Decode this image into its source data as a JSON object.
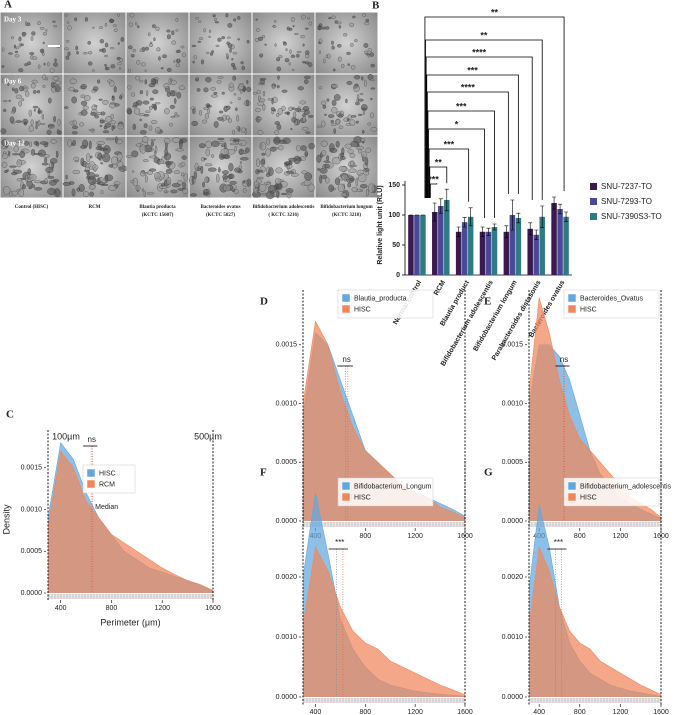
{
  "panel_a": {
    "label": "A",
    "rows": [
      "Day 3",
      "Day 6",
      "Day 12"
    ],
    "columns": [
      [
        "Control (HISC)"
      ],
      [
        "RCM"
      ],
      [
        "Blautia producta",
        "(KCTC 15607)"
      ],
      [
        "Bacteroides ovatus",
        "(KCTC 5827)"
      ],
      [
        "Bifidobacterium adolescentis",
        "( KCTC 3216)"
      ],
      [
        "Bifidobacterium longum",
        "(KCTC 3218)"
      ]
    ]
  },
  "chart_data": [
    {
      "type": "bar",
      "label": "B",
      "ylabel": "Relative light unit (RLU)",
      "categories": [
        "Normal control",
        "RCM",
        "Blautia product",
        "Bifidobacterium adolescentis",
        "Bifidobacterium longum",
        "Parabacteroides distasonis",
        "Bacteroides ovatus"
      ],
      "series": [
        {
          "name": "SNU-7237-TO",
          "color": "#3b1a52",
          "values": [
            100,
            105,
            72,
            72,
            72,
            77,
            120
          ],
          "errors": [
            0,
            15,
            8,
            8,
            10,
            10,
            10
          ]
        },
        {
          "name": "SNU-7293-TO",
          "color": "#4a4996",
          "values": [
            100,
            115,
            88,
            72,
            100,
            67,
            110
          ],
          "errors": [
            0,
            12,
            8,
            6,
            25,
            8,
            8
          ]
        },
        {
          "name": "SNU-7390S3-TO",
          "color": "#2e7b84",
          "values": [
            100,
            125,
            97,
            80,
            95,
            97,
            97
          ],
          "errors": [
            0,
            18,
            15,
            5,
            8,
            18,
            8
          ]
        }
      ],
      "ylim": [
        0,
        150
      ],
      "yticks": [
        0,
        50,
        100,
        150
      ],
      "annotations": [
        "**",
        "**",
        "****",
        "***",
        "****",
        "***",
        "*",
        "***",
        "**",
        "***"
      ]
    },
    {
      "type": "density",
      "label": "C",
      "xlabel": "Perimeter (μm)",
      "ylabel": "Density",
      "x": [
        300,
        400,
        500,
        600,
        700,
        800,
        900,
        1000,
        1100,
        1200,
        1300,
        1400,
        1500,
        1600
      ],
      "series": [
        {
          "name": "HISC",
          "color": "#62a8de",
          "median": 640,
          "values": [
            0.0009,
            0.0018,
            0.0016,
            0.0012,
            0.0009,
            0.0007,
            0.0005,
            0.0004,
            0.0003,
            0.00025,
            0.0002,
            0.00015,
            0.0001,
            3e-05
          ]
        },
        {
          "name": "RCM",
          "color": "#f0875c",
          "median": 650,
          "values": [
            0.0008,
            0.0017,
            0.0015,
            0.0011,
            0.0009,
            0.0007,
            0.0006,
            0.0005,
            0.0004,
            0.0003,
            0.00022,
            0.00015,
            0.0001,
            3e-05
          ]
        }
      ],
      "xlim": [
        300,
        1600
      ],
      "xticks": [
        400,
        800,
        1200,
        1600
      ],
      "ylim": [
        0,
        0.002
      ],
      "yticks": [
        {
          "value": 0,
          "label": "0.0000"
        },
        {
          "value": 0.0005,
          "label": "0.0005"
        },
        {
          "value": 0.001,
          "label": "0.0010"
        },
        {
          "value": 0.0015,
          "label": "0.0015"
        }
      ],
      "significance": "ns",
      "annotations": [
        "100µm",
        "500µm",
        "Median"
      ]
    },
    {
      "type": "density",
      "label": "D",
      "x": [
        300,
        400,
        500,
        600,
        700,
        800,
        900,
        1000,
        1100,
        1200,
        1300,
        1400,
        1500,
        1600
      ],
      "series": [
        {
          "name": "Blautia_producta",
          "color": "#62a8de",
          "median": 640,
          "values": [
            0.0009,
            0.0016,
            0.0015,
            0.0012,
            0.0009,
            0.0006,
            0.0005,
            0.0004,
            0.0003,
            0.00025,
            0.0002,
            0.00015,
            0.0001,
            4e-05
          ]
        },
        {
          "name": "HISC",
          "color": "#f0875c",
          "median": 660,
          "values": [
            0.001,
            0.0017,
            0.0015,
            0.0011,
            0.0008,
            0.0006,
            0.0005,
            0.0004,
            0.0003,
            0.00025,
            0.0002,
            0.00012,
            8e-05,
            3e-05
          ]
        }
      ],
      "xlim": [
        300,
        1600
      ],
      "xticks": [
        400,
        800,
        1200,
        1600
      ],
      "ylim": [
        0,
        0.002
      ],
      "yticks": [
        {
          "value": 0,
          "label": "0.0000"
        },
        {
          "value": 0.0005,
          "label": "0.0005"
        },
        {
          "value": 0.001,
          "label": "0.0010"
        },
        {
          "value": 0.0015,
          "label": "0.0015"
        }
      ],
      "significance": "ns"
    },
    {
      "type": "density",
      "label": "E",
      "x": [
        300,
        400,
        500,
        600,
        700,
        800,
        900,
        1000,
        1100,
        1200,
        1300,
        1400,
        1500,
        1600
      ],
      "series": [
        {
          "name": "Bacteroides_Ovatus",
          "color": "#62a8de",
          "median": 640,
          "values": [
            0.001,
            0.0015,
            0.0015,
            0.0014,
            0.0012,
            0.0009,
            0.0006,
            0.0004,
            0.0003,
            0.0002,
            0.00015,
            0.0001,
            6e-05,
            2e-05
          ]
        },
        {
          "name": "HISC",
          "color": "#f0875c",
          "median": 650,
          "values": [
            0.0011,
            0.0019,
            0.0016,
            0.0012,
            0.0009,
            0.0007,
            0.0006,
            0.0005,
            0.0004,
            0.0003,
            0.0002,
            0.00015,
            0.0001,
            3e-05
          ]
        }
      ],
      "xlim": [
        300,
        1600
      ],
      "xticks": [
        400,
        800,
        1200,
        1600
      ],
      "ylim": [
        0,
        0.002
      ],
      "yticks": [
        {
          "value": 0,
          "label": "0.0000"
        },
        {
          "value": 0.0005,
          "label": "0.0005"
        },
        {
          "value": 0.001,
          "label": "0.0010"
        },
        {
          "value": 0.0015,
          "label": "0.0015"
        }
      ],
      "significance": "ns"
    },
    {
      "type": "density",
      "label": "F",
      "x": [
        300,
        400,
        500,
        600,
        700,
        800,
        900,
        1000,
        1100,
        1200,
        1300,
        1400,
        1500,
        1600
      ],
      "series": [
        {
          "name": "Bifidobacterium_Longum",
          "color": "#62a8de",
          "median": 570,
          "values": [
            0.002,
            0.0034,
            0.0024,
            0.0013,
            0.0008,
            0.0005,
            0.0003,
            0.0002,
            0.00015,
            0.0001,
            7e-05,
            5e-05,
            3e-05,
            1e-05
          ]
        },
        {
          "name": "HISC",
          "color": "#f0875c",
          "median": 620,
          "values": [
            0.0012,
            0.0025,
            0.0021,
            0.0015,
            0.0011,
            0.0009,
            0.0008,
            0.0006,
            0.0005,
            0.0004,
            0.0003,
            0.0002,
            0.00012,
            4e-05
          ]
        }
      ],
      "xlim": [
        300,
        1600
      ],
      "xticks": [
        400,
        800,
        1200,
        1600
      ],
      "ylim": [
        0,
        0.004
      ],
      "yticks": [
        {
          "value": 0,
          "label": "0.0000"
        },
        {
          "value": 0.001,
          "label": "0.0010"
        },
        {
          "value": 0.002,
          "label": "0.0020"
        }
      ],
      "significance": "***"
    },
    {
      "type": "density",
      "label": "G",
      "x": [
        300,
        400,
        500,
        600,
        700,
        800,
        900,
        1000,
        1100,
        1200,
        1300,
        1400,
        1500,
        1600
      ],
      "series": [
        {
          "name": "Bifidobacterium_adolescentis",
          "color": "#62a8de",
          "median": 560,
          "values": [
            0.0018,
            0.0032,
            0.0025,
            0.0015,
            0.0009,
            0.0006,
            0.0004,
            0.0003,
            0.0002,
            0.00015,
            0.0001,
            7e-05,
            4e-05,
            1e-05
          ]
        },
        {
          "name": "HISC",
          "color": "#f0875c",
          "median": 620,
          "values": [
            0.0012,
            0.0025,
            0.0021,
            0.0015,
            0.0011,
            0.0009,
            0.0008,
            0.0006,
            0.0005,
            0.0004,
            0.0003,
            0.0002,
            0.00012,
            4e-05
          ]
        }
      ],
      "xlim": [
        300,
        1600
      ],
      "xticks": [
        400,
        800,
        1200,
        1600
      ],
      "ylim": [
        0,
        0.004
      ],
      "yticks": [
        {
          "value": 0,
          "label": "0.0000"
        },
        {
          "value": 0.001,
          "label": "0.0010"
        },
        {
          "value": 0.002,
          "label": "0.0020"
        }
      ],
      "significance": "***"
    }
  ]
}
